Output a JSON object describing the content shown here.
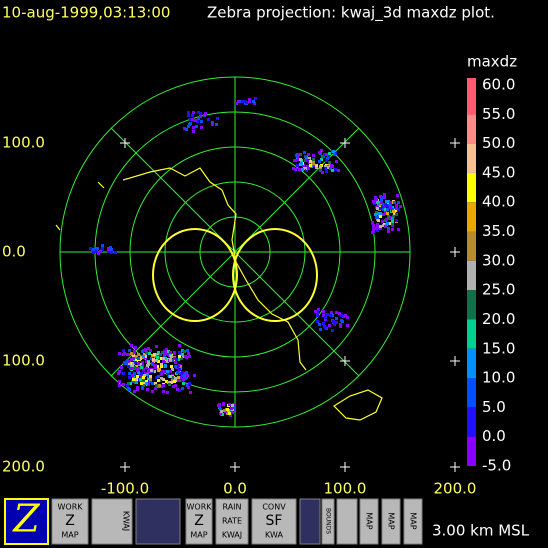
{
  "header": {
    "timestamp": "10-aug-1999,03:13:00",
    "title": "Zebra projection: kwaj_3d maxdz plot."
  },
  "plot": {
    "y_labels": [
      "100.0",
      "0.0",
      "100.0",
      "200.0"
    ],
    "x_labels": [
      "-100.0",
      "0.0",
      "100.0",
      "200.0"
    ]
  },
  "colorbar": {
    "title": "maxdz",
    "labels": [
      "60.0",
      "55.0",
      "50.0",
      "45.0",
      "40.0",
      "35.0",
      "30.0",
      "25.0",
      "20.0",
      "15.0",
      "10.0",
      "5.0",
      "0.0",
      "-5.0"
    ],
    "colors": [
      "#ff5a70",
      "#ff8a8a",
      "#f6c090",
      "#ffff00",
      "#e8a800",
      "#b88a30",
      "#b0b0b0",
      "#107048",
      "#00d090",
      "#0090ff",
      "#0050ff",
      "#2010ff",
      "#8800ff"
    ]
  },
  "toolbar": {
    "buttons": [
      {
        "lines": [
          "Z"
        ]
      },
      {
        "lines": [
          "WORK",
          "Z",
          "MAP"
        ]
      },
      {
        "lines": [
          "KWAJ"
        ]
      },
      {
        "lines": []
      },
      {
        "lines": [
          "WORK",
          "Z",
          "MAP"
        ]
      },
      {
        "lines": [
          "RAIN",
          "RATE",
          "KWAJ"
        ]
      },
      {
        "lines": [
          "CONV",
          "SF",
          "KWA"
        ]
      },
      {
        "lines": []
      },
      {
        "lines": [
          "BOUNDS"
        ]
      },
      {
        "lines": []
      },
      {
        "lines": [
          "MAP"
        ]
      },
      {
        "lines": [
          "MAP"
        ]
      },
      {
        "lines": [
          "MAP"
        ]
      }
    ]
  },
  "status": "3.00 km MSL"
}
